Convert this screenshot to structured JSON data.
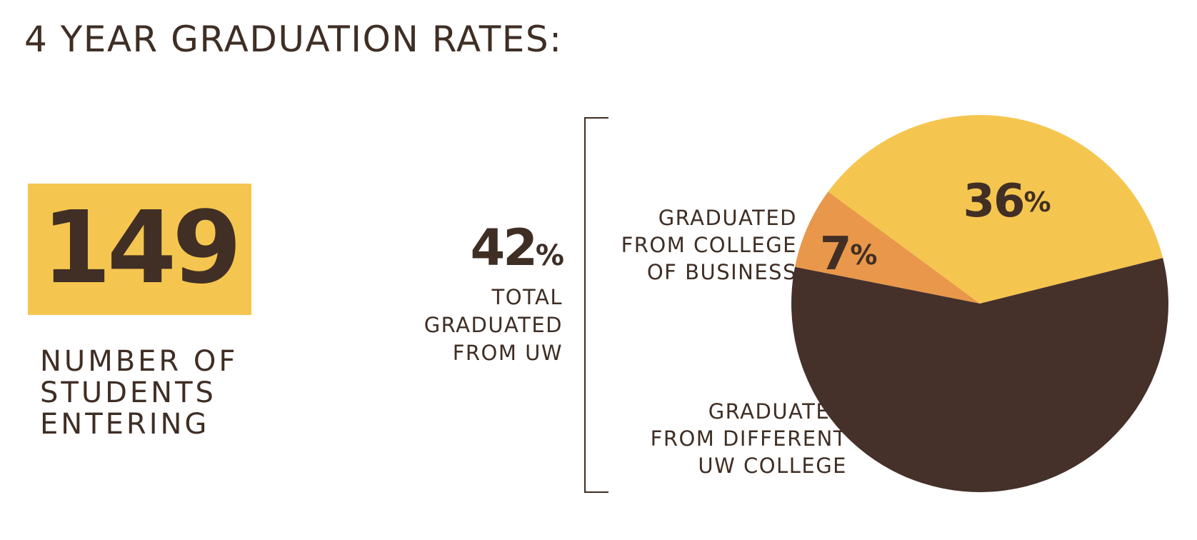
{
  "title": "4 YEAR GRADUATION RATES:",
  "students": {
    "value": "149",
    "label": "NUMBER OF\nSTUDENTS\nENTERING"
  },
  "total": {
    "value": "42",
    "unit": "%",
    "label": "TOTAL\nGRADUATED\nFROM UW"
  },
  "labels": {
    "business": "GRADUATED\nFROM COLLEGE\nOF BUSINESS",
    "different": "GRADUATED\nFROM DIFFERENT\nUW COLLEGE"
  },
  "colors": {
    "dark_brown": "#45302a",
    "gold": "#f5c64f",
    "orange": "#e9974a",
    "text": "#3f2e24"
  },
  "chart_data": {
    "type": "pie",
    "title": "4 YEAR GRADUATION RATES:",
    "slices": [
      {
        "label": "GRADUATED FROM COLLEGE OF BUSINESS",
        "value": 36,
        "display": "36",
        "unit": "%",
        "color": "#f5c64f"
      },
      {
        "label": "GRADUATED FROM DIFFERENT UW COLLEGE",
        "value": 7,
        "display": "7",
        "unit": "%",
        "color": "#e9974a"
      },
      {
        "label": "",
        "value": 57,
        "display": "",
        "unit": "",
        "color": "#45302a"
      }
    ],
    "start_angle_deg": 14,
    "direction": "counterclockwise"
  }
}
